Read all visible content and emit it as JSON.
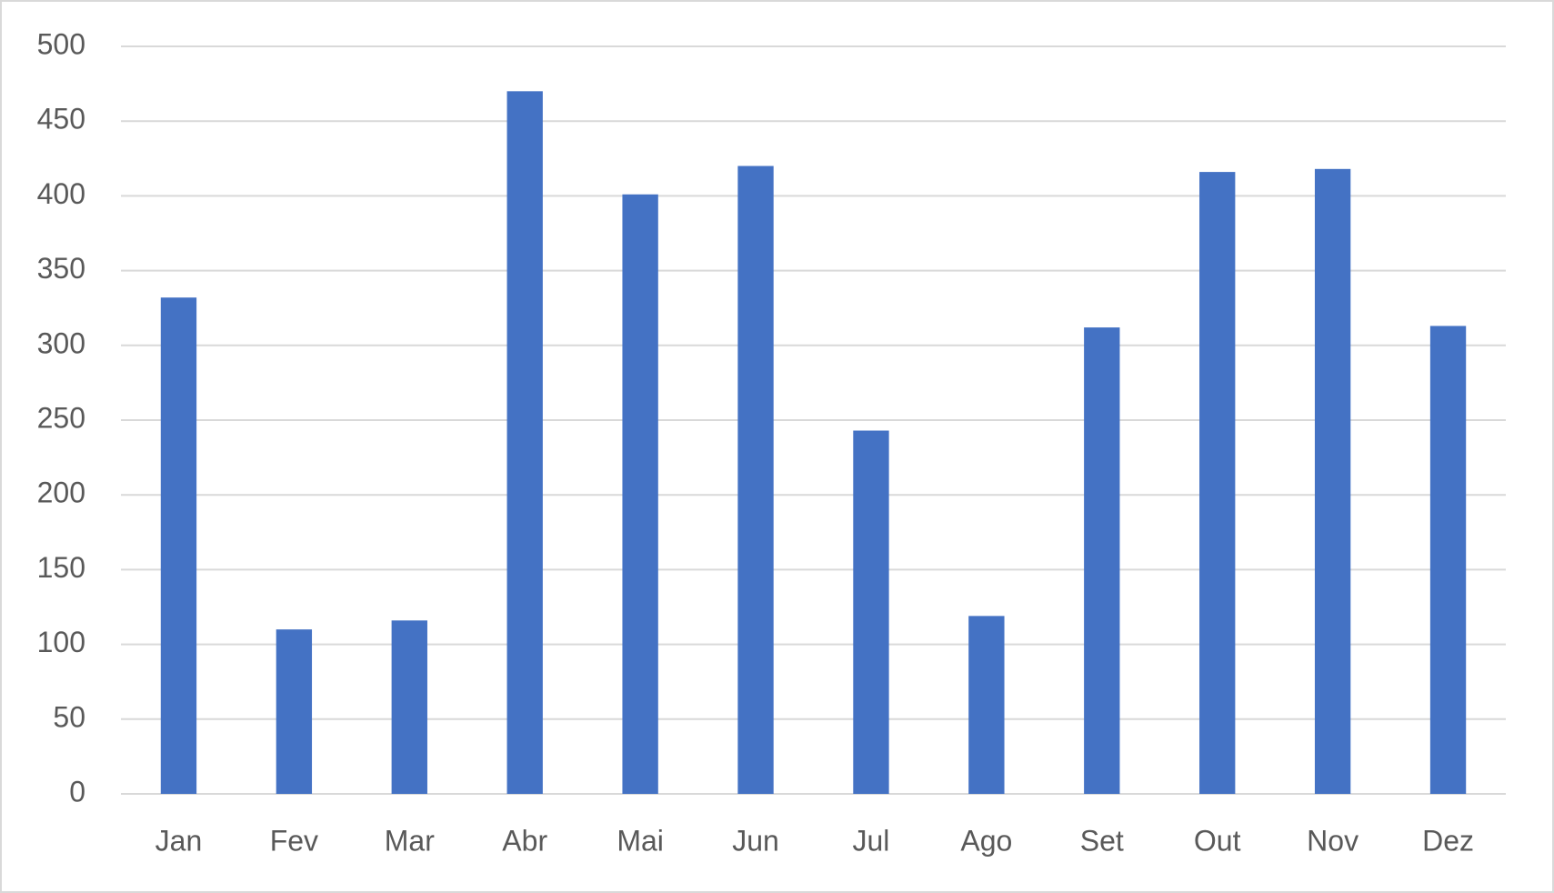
{
  "chart_data": {
    "type": "bar",
    "categories": [
      "Jan",
      "Fev",
      "Mar",
      "Abr",
      "Mai",
      "Jun",
      "Jul",
      "Ago",
      "Set",
      "Out",
      "Nov",
      "Dez"
    ],
    "values": [
      332,
      110,
      116,
      470,
      401,
      420,
      243,
      119,
      312,
      416,
      418,
      313
    ],
    "color": "#4472c4",
    "ylim": [
      0,
      500
    ],
    "yticks": [
      0,
      50,
      100,
      150,
      200,
      250,
      300,
      350,
      400,
      450,
      500
    ],
    "grid": true
  }
}
